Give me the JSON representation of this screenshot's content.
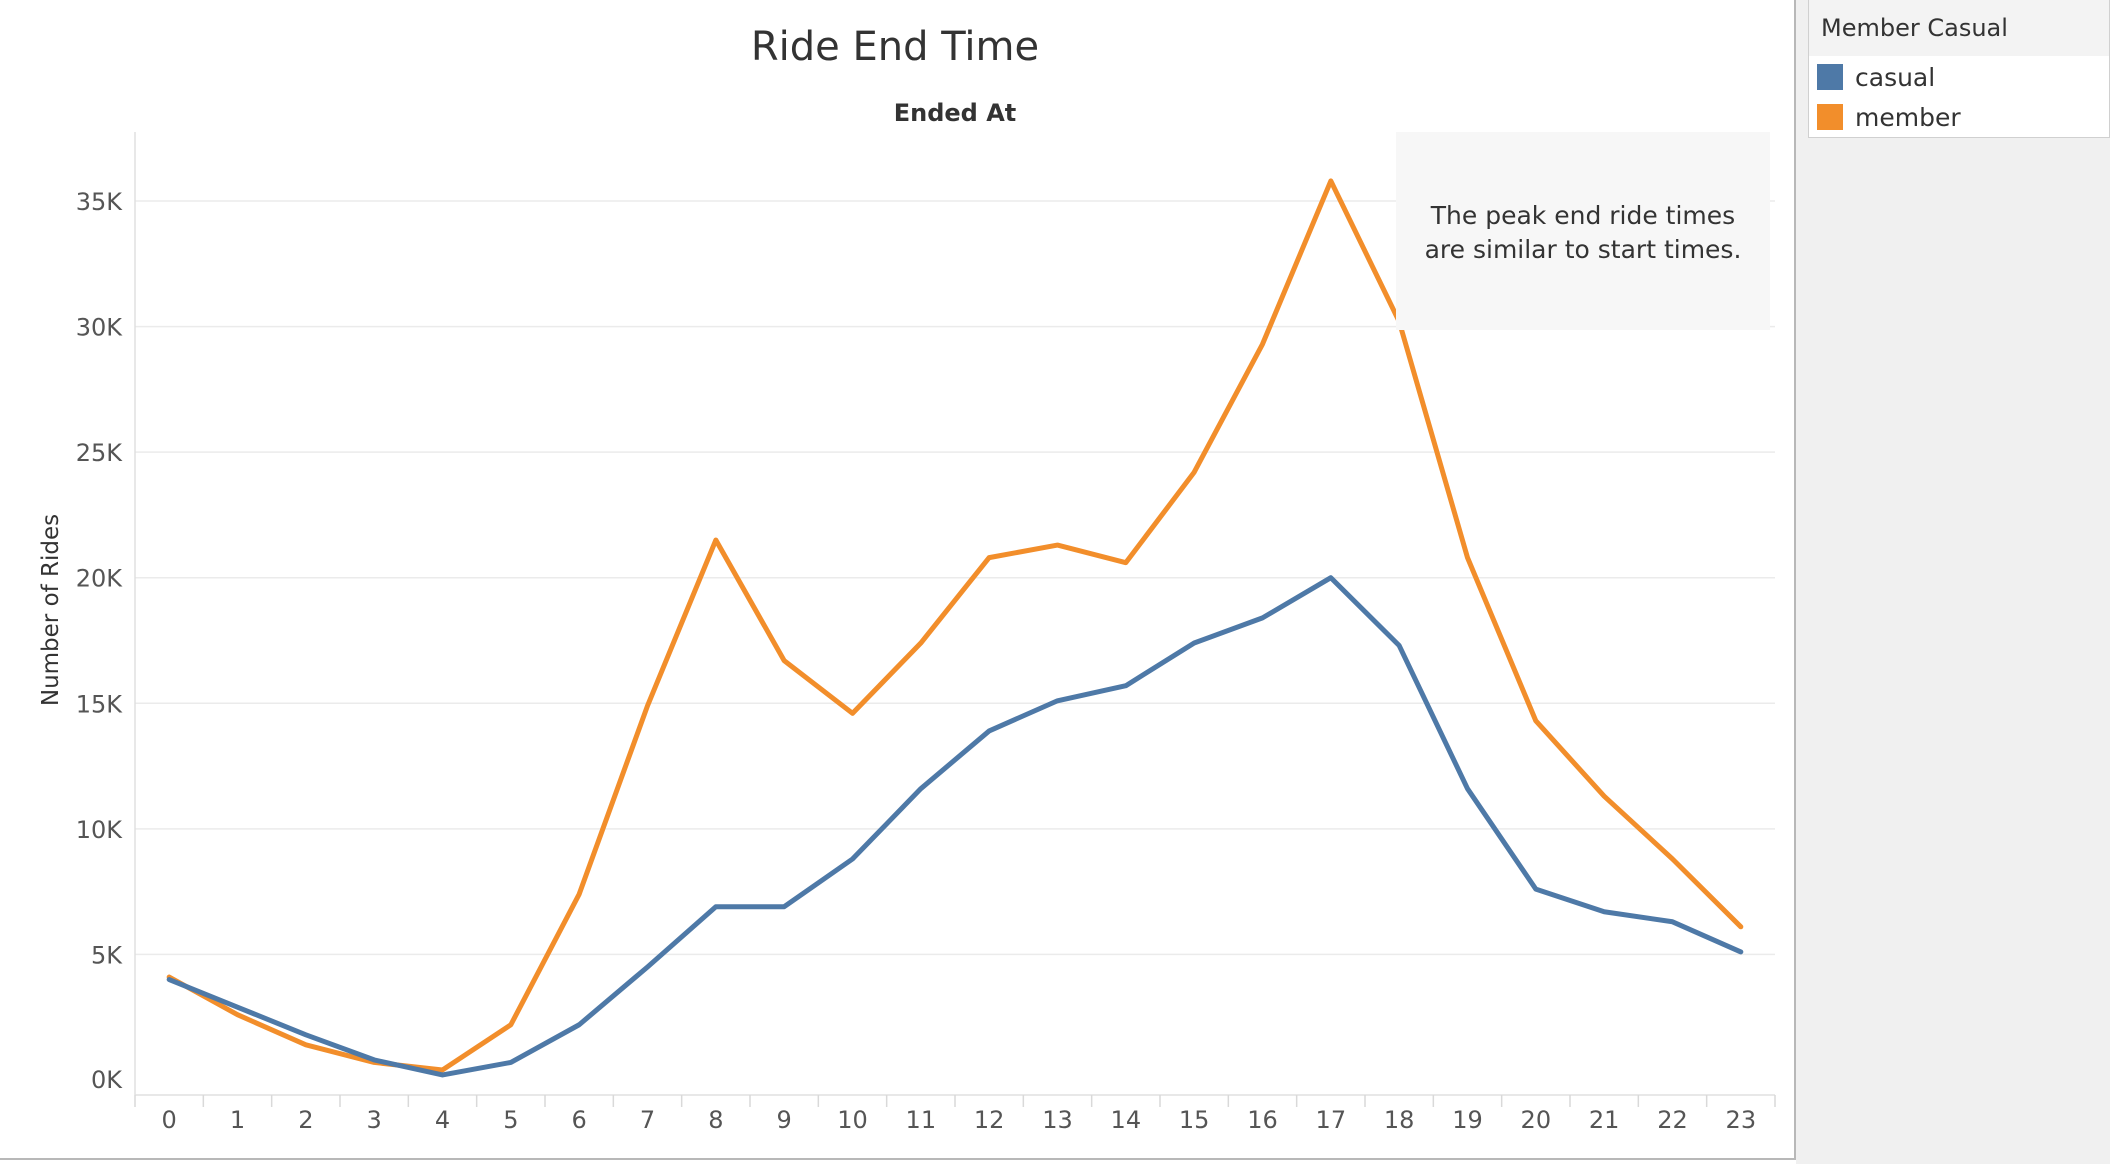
{
  "colors": {
    "casual": "#4e79a7",
    "member": "#f28e2b",
    "grid": "#ebebeb",
    "annotation_bg": "#f7f7f7"
  },
  "legend": {
    "title": "Member Casual",
    "items": [
      {
        "label": "casual",
        "color": "#4e79a7"
      },
      {
        "label": "member",
        "color": "#f28e2b"
      }
    ]
  },
  "chart_data": {
    "type": "line",
    "title": "Ride End Time",
    "subtitle": "Ended At",
    "xlabel": "",
    "ylabel": "Number of Rides",
    "categories": [
      "0",
      "1",
      "2",
      "3",
      "4",
      "5",
      "6",
      "7",
      "8",
      "9",
      "10",
      "11",
      "12",
      "13",
      "14",
      "15",
      "16",
      "17",
      "18",
      "19",
      "20",
      "21",
      "22",
      "23"
    ],
    "ylim": [
      0,
      38000
    ],
    "yticks": [
      0,
      5000,
      10000,
      15000,
      20000,
      25000,
      30000,
      35000
    ],
    "ytick_labels": [
      "0K",
      "5K",
      "10K",
      "15K",
      "20K",
      "25K",
      "30K",
      "35K"
    ],
    "grid": true,
    "legend_position": "top-right",
    "series": [
      {
        "name": "casual",
        "values": [
          4000,
          2900,
          1800,
          800,
          200,
          700,
          2200,
          4500,
          6900,
          6900,
          8800,
          11600,
          13900,
          15100,
          15700,
          17400,
          18400,
          20000,
          17300,
          11600,
          7600,
          6700,
          6300,
          5100
        ]
      },
      {
        "name": "member",
        "values": [
          4100,
          2600,
          1400,
          700,
          400,
          2200,
          7400,
          14900,
          21500,
          16700,
          14600,
          17400,
          20800,
          21300,
          20600,
          24200,
          29300,
          35800,
          30200,
          20800,
          14300,
          11300,
          8800,
          6100
        ]
      }
    ],
    "annotation": "The peak end ride times are similar to start times."
  }
}
